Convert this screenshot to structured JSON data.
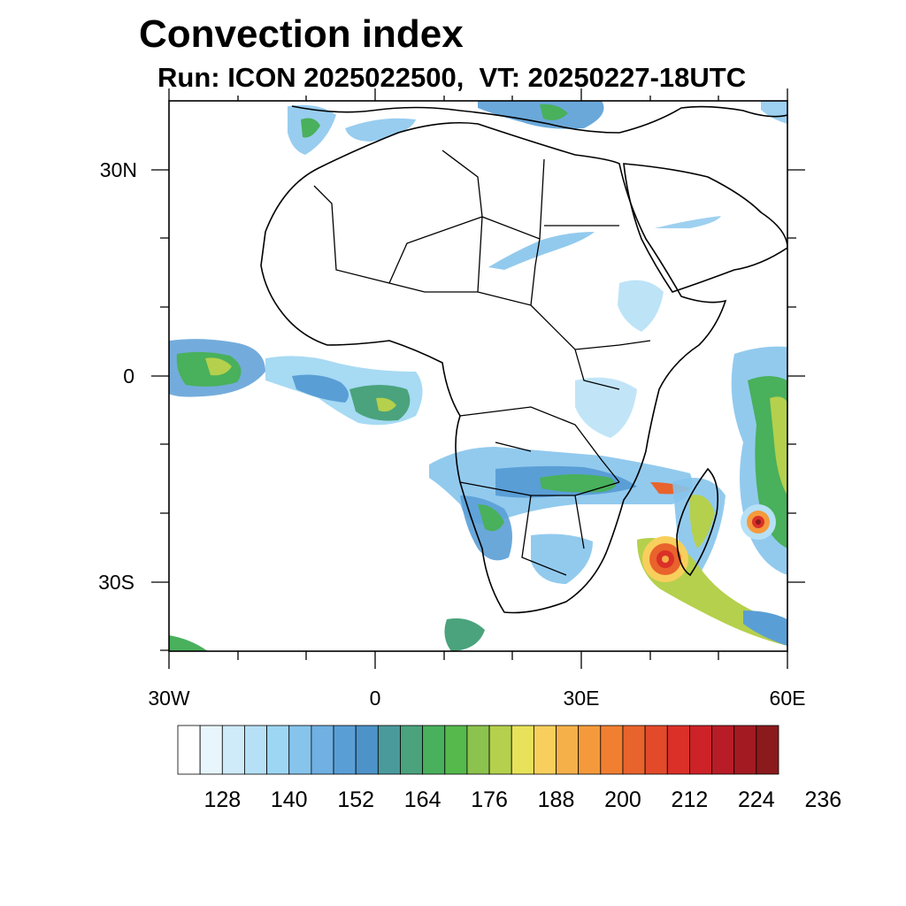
{
  "title": "Convection index",
  "subtitle": "Run: ICON 2025022500,  VT: 20250227-18UTC",
  "map": {
    "lon_labels": [
      "30W",
      "0",
      "30E",
      "60E"
    ],
    "lat_labels": [
      "30N",
      "0",
      "30S"
    ]
  },
  "colorbar": {
    "labels": [
      "128",
      "140",
      "152",
      "164",
      "176",
      "188",
      "200",
      "212",
      "224",
      "236"
    ],
    "colors": [
      "#ffffff",
      "#e8f5fc",
      "#cfeaf8",
      "#b6e0f6",
      "#9dd6f2",
      "#86c4ec",
      "#70b0e2",
      "#5a9ed6",
      "#4d92c8",
      "#4a9a9c",
      "#4aa37c",
      "#49b05c",
      "#55b94c",
      "#8cc24e",
      "#b5d04c",
      "#e8e25a",
      "#f8cf5c",
      "#f6b04a",
      "#f59a3c",
      "#f07f32",
      "#e9632c",
      "#e24a2a",
      "#da3028",
      "#cc2228",
      "#b81c26",
      "#a31a22",
      "#8a1a1c"
    ]
  },
  "colors": {
    "blue_light": "#b6e0f6",
    "blue_mid": "#86c4ec",
    "blue_dark": "#5a9ed6",
    "teal": "#4a9a9c",
    "green": "#49b05c",
    "lime": "#b5d04c",
    "yellow": "#e8e25a",
    "orange": "#f59a3c",
    "red": "#da3028",
    "dark_red": "#8a1a1c"
  }
}
